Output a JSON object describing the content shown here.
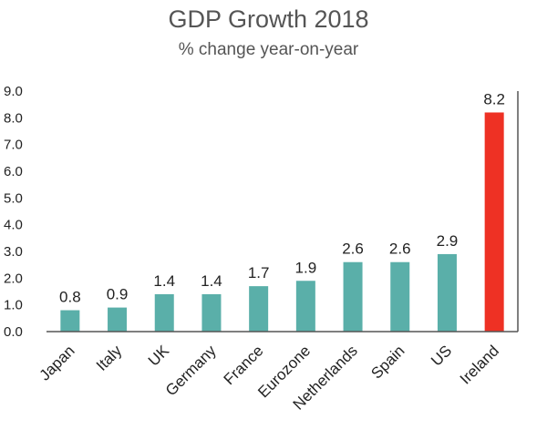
{
  "chart_data": {
    "type": "bar",
    "title": "GDP Growth 2018",
    "subtitle": "% change year-on-year",
    "xlabel": "",
    "ylabel": "",
    "categories": [
      "Japan",
      "Italy",
      "UK",
      "Germany",
      "France",
      "Eurozone",
      "Netherlands",
      "Spain",
      "US",
      "Ireland"
    ],
    "values": [
      0.8,
      0.9,
      1.4,
      1.4,
      1.7,
      1.9,
      2.6,
      2.6,
      2.9,
      8.2
    ],
    "value_labels": [
      "0.8",
      "0.9",
      "1.4",
      "1.4",
      "1.7",
      "1.9",
      "2.6",
      "2.6",
      "2.9",
      "8.2"
    ],
    "ylim": [
      0,
      9
    ],
    "yticks": [
      "0.0",
      "1.0",
      "2.0",
      "3.0",
      "4.0",
      "5.0",
      "6.0",
      "7.0",
      "8.0",
      "9.0"
    ],
    "grid": false,
    "legend": "none",
    "colors": {
      "default_bar": "#5aafa9",
      "highlight_bar": "#ee3124",
      "axis": "#555555",
      "text": "#222222"
    },
    "highlight_category": "Ireland"
  }
}
